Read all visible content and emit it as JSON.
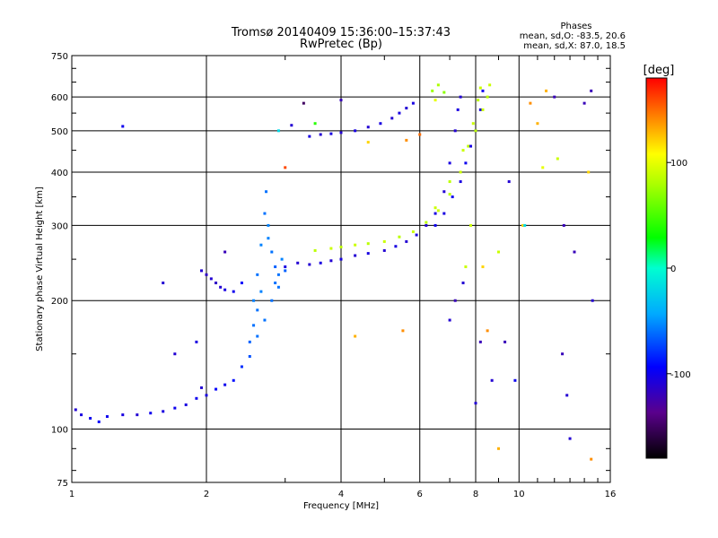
{
  "chart_data": {
    "type": "scatter",
    "title": "Tromsø 20140409 15:36:00–15:37:43",
    "subtitle": "RwPretec (Bp)",
    "xlabel": "Frequency [MHz]",
    "ylabel": "Stationary phase Virtual Height [km]",
    "x_scale": "log",
    "y_scale": "log",
    "xlim": [
      1,
      16
    ],
    "ylim": [
      75,
      750
    ],
    "x_ticks": [
      1,
      2,
      4,
      6,
      8,
      10,
      16
    ],
    "x_tick_labels": [
      "1",
      "2",
      "4",
      "6",
      "8",
      "10",
      "16"
    ],
    "y_ticks": [
      75,
      100,
      200,
      300,
      400,
      500,
      600,
      750
    ],
    "y_tick_labels": [
      "75",
      "100",
      "200",
      "300",
      "400",
      "500",
      "600",
      "750"
    ],
    "grid": true,
    "annotation": {
      "heading": "Phases",
      "line1": "mean, sd,O:  -83.5, 20.6",
      "line2": "mean, sd,X:  87.0, 18.5"
    },
    "colorbar": {
      "label": "[deg]",
      "range": [
        -180,
        180
      ],
      "ticks": [
        100,
        0,
        -100
      ],
      "tick_labels": [
        "100",
        "0",
        "-100"
      ]
    },
    "series": [
      {
        "points": [
          [
            1.02,
            111,
            -110
          ],
          [
            1.05,
            108,
            -105
          ],
          [
            1.1,
            106,
            -100
          ],
          [
            1.15,
            104,
            -95
          ],
          [
            1.2,
            107,
            -100
          ],
          [
            1.3,
            108,
            -105
          ],
          [
            1.4,
            108,
            -110
          ],
          [
            1.5,
            109,
            -100
          ],
          [
            1.6,
            110,
            -105
          ],
          [
            1.7,
            112,
            -100
          ],
          [
            1.8,
            114,
            -105
          ],
          [
            1.9,
            118,
            -100
          ],
          [
            1.95,
            125,
            -110
          ],
          [
            2.0,
            120,
            -105
          ],
          [
            2.1,
            124,
            -95
          ],
          [
            2.2,
            127,
            -100
          ],
          [
            2.3,
            130,
            -90
          ],
          [
            2.4,
            140,
            -80
          ],
          [
            2.5,
            148,
            -70
          ],
          [
            2.6,
            165,
            -60
          ]
        ]
      },
      {
        "points": [
          [
            1.95,
            235,
            -110
          ],
          [
            2.0,
            230,
            -115
          ],
          [
            2.05,
            225,
            -110
          ],
          [
            2.1,
            220,
            -115
          ],
          [
            2.15,
            215,
            -110
          ],
          [
            2.2,
            212,
            -105
          ],
          [
            2.3,
            210,
            -100
          ],
          [
            2.4,
            220,
            -95
          ]
        ]
      },
      {
        "points": [
          [
            2.55,
            200,
            -55
          ],
          [
            2.6,
            230,
            -60
          ],
          [
            2.65,
            270,
            -55
          ],
          [
            2.7,
            320,
            -60
          ],
          [
            2.72,
            360,
            -60
          ],
          [
            2.75,
            300,
            -55
          ],
          [
            2.8,
            260,
            -60
          ],
          [
            2.85,
            240,
            -65
          ],
          [
            2.9,
            230,
            -60
          ],
          [
            2.95,
            250,
            -55
          ],
          [
            2.6,
            190,
            -60
          ],
          [
            2.65,
            210,
            -55
          ],
          [
            2.7,
            180,
            -60
          ],
          [
            2.8,
            200,
            -60
          ],
          [
            2.75,
            280,
            -55
          ],
          [
            2.85,
            220,
            -60
          ],
          [
            2.5,
            160,
            -65
          ],
          [
            2.55,
            175,
            -60
          ],
          [
            2.9,
            215,
            -60
          ],
          [
            3.0,
            235,
            -65
          ]
        ]
      },
      {
        "points": [
          [
            3.0,
            240,
            -105
          ],
          [
            3.2,
            245,
            -110
          ],
          [
            3.4,
            243,
            -110
          ],
          [
            3.6,
            245,
            -105
          ],
          [
            3.8,
            248,
            -110
          ],
          [
            4.0,
            250,
            -105
          ],
          [
            4.3,
            255,
            -110
          ],
          [
            4.6,
            258,
            -105
          ],
          [
            5.0,
            262,
            -110
          ],
          [
            5.3,
            268,
            -105
          ],
          [
            5.6,
            275,
            -110
          ],
          [
            5.9,
            285,
            -105
          ],
          [
            6.2,
            300,
            -110
          ],
          [
            6.5,
            320,
            -105
          ],
          [
            6.8,
            360,
            -110
          ],
          [
            7.0,
            420,
            -105
          ],
          [
            7.2,
            500,
            -110
          ],
          [
            7.3,
            560,
            -105
          ],
          [
            7.4,
            600,
            -110
          ]
        ]
      },
      {
        "points": [
          [
            3.4,
            485,
            -105
          ],
          [
            3.6,
            490,
            -110
          ],
          [
            3.8,
            492,
            -105
          ],
          [
            4.0,
            495,
            -110
          ],
          [
            4.3,
            500,
            -105
          ],
          [
            4.6,
            510,
            -110
          ],
          [
            4.9,
            520,
            -105
          ],
          [
            5.2,
            535,
            -110
          ],
          [
            5.4,
            550,
            -105
          ],
          [
            5.6,
            565,
            -110
          ],
          [
            5.8,
            580,
            -105
          ]
        ]
      },
      {
        "points": [
          [
            3.5,
            262,
            85
          ],
          [
            3.8,
            265,
            90
          ],
          [
            4.0,
            267,
            85
          ],
          [
            4.3,
            270,
            90
          ],
          [
            4.6,
            272,
            85
          ],
          [
            5.0,
            275,
            90
          ],
          [
            5.4,
            282,
            85
          ],
          [
            5.8,
            290,
            90
          ],
          [
            6.2,
            305,
            85
          ],
          [
            6.6,
            325,
            90
          ],
          [
            7.0,
            355,
            85
          ],
          [
            7.4,
            400,
            90
          ],
          [
            7.7,
            460,
            85
          ],
          [
            7.9,
            520,
            90
          ],
          [
            8.1,
            590,
            85
          ],
          [
            8.2,
            630,
            90
          ]
        ]
      },
      {
        "points": [
          [
            6.5,
            300,
            -100
          ],
          [
            6.8,
            320,
            -105
          ],
          [
            7.1,
            350,
            -100
          ],
          [
            7.4,
            380,
            -105
          ],
          [
            7.6,
            420,
            -100
          ],
          [
            7.8,
            460,
            -105
          ],
          [
            8.0,
            500,
            -100
          ],
          [
            8.2,
            560,
            -105
          ],
          [
            8.3,
            620,
            -100
          ]
        ]
      },
      {
        "points": [
          [
            6.5,
            330,
            90
          ],
          [
            7.0,
            380,
            85
          ],
          [
            7.5,
            450,
            90
          ],
          [
            8.0,
            500,
            85
          ],
          [
            8.3,
            560,
            90
          ],
          [
            8.5,
            600,
            85
          ],
          [
            8.6,
            640,
            90
          ],
          [
            6.4,
            620,
            75
          ],
          [
            6.6,
            640,
            80
          ],
          [
            6.8,
            615,
            70
          ]
        ]
      },
      {
        "points": [
          [
            1.3,
            512,
            -100
          ],
          [
            1.6,
            220,
            -110
          ],
          [
            1.7,
            150,
            -110
          ],
          [
            1.9,
            160,
            -105
          ],
          [
            2.2,
            260,
            -120
          ],
          [
            2.9,
            500,
            -20
          ],
          [
            3.0,
            410,
            160
          ],
          [
            3.1,
            515,
            -110
          ],
          [
            3.3,
            580,
            -150
          ],
          [
            3.5,
            520,
            40
          ],
          [
            4.0,
            590,
            -120
          ],
          [
            4.3,
            165,
            130
          ],
          [
            4.6,
            470,
            120
          ],
          [
            5.5,
            170,
            140
          ],
          [
            5.6,
            475,
            140
          ],
          [
            6.0,
            490,
            150
          ],
          [
            6.5,
            590,
            100
          ],
          [
            7.0,
            180,
            -110
          ],
          [
            7.2,
            200,
            -120
          ],
          [
            7.5,
            220,
            -110
          ],
          [
            7.6,
            240,
            90
          ],
          [
            7.8,
            300,
            90
          ],
          [
            8.0,
            115,
            -110
          ],
          [
            8.2,
            160,
            -120
          ],
          [
            8.3,
            240,
            120
          ],
          [
            8.5,
            170,
            140
          ],
          [
            8.7,
            130,
            -110
          ],
          [
            9.0,
            260,
            90
          ],
          [
            9.3,
            160,
            -120
          ],
          [
            9.5,
            380,
            -110
          ],
          [
            9.8,
            130,
            -100
          ],
          [
            10.2,
            300,
            120
          ],
          [
            10.6,
            580,
            140
          ],
          [
            11.0,
            520,
            130
          ],
          [
            11.3,
            410,
            100
          ],
          [
            12.0,
            600,
            -120
          ],
          [
            12.2,
            430,
            90
          ],
          [
            12.5,
            150,
            -120
          ],
          [
            12.6,
            300,
            -120
          ],
          [
            12.8,
            120,
            -110
          ],
          [
            13.0,
            95,
            -110
          ],
          [
            13.3,
            260,
            -120
          ],
          [
            14.0,
            580,
            -120
          ],
          [
            14.3,
            400,
            120
          ],
          [
            14.5,
            620,
            -120
          ],
          [
            14.6,
            200,
            -110
          ],
          [
            9.0,
            90,
            130
          ],
          [
            10.3,
            300,
            -20
          ],
          [
            11.5,
            620,
            130
          ],
          [
            14.5,
            85,
            140
          ]
        ]
      }
    ]
  }
}
